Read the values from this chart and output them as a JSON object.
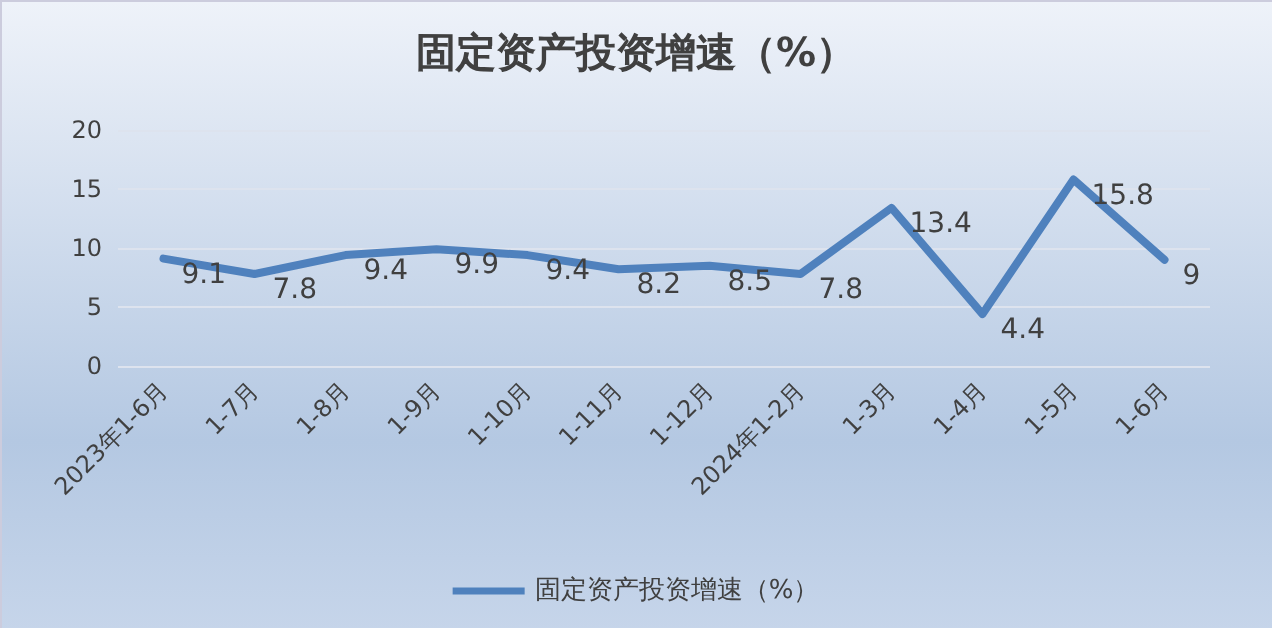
{
  "chart_data": {
    "type": "line",
    "title": "固定资产投资增速（%）",
    "categories": [
      "2023年1-6月",
      "1-7月",
      "1-8月",
      "1-9月",
      "1-10月",
      "1-11月",
      "1-12月",
      "2024年1-2月",
      "1-3月",
      "1-4月",
      "1-5月",
      "1-6月"
    ],
    "series": [
      {
        "name": "固定资产投资增速（%）",
        "color": "#4f81bd",
        "values": [
          9.1,
          7.8,
          9.4,
          9.9,
          9.4,
          8.2,
          8.5,
          7.8,
          13.4,
          4.4,
          15.8,
          9
        ]
      }
    ],
    "ylim": [
      0,
      20
    ],
    "yticks": [
      0,
      5,
      10,
      15,
      20
    ],
    "grid": "y",
    "legend": "bottom",
    "data_labels": true,
    "marker": "none",
    "line_style": "solid"
  }
}
